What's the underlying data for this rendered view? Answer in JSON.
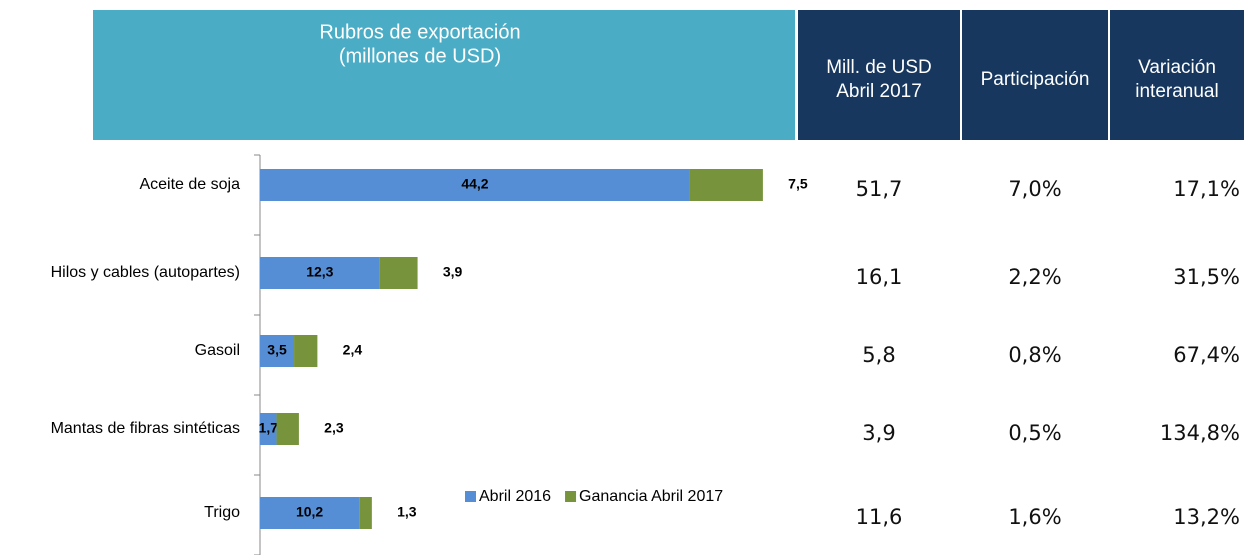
{
  "chart_data": {
    "type": "bar",
    "orientation": "horizontal",
    "stacked": true,
    "categories": [
      "Aceite de soja",
      "Hilos y cables (autopartes)",
      "Gasoil",
      "Mantas de fibras sintéticas",
      "Trigo"
    ],
    "series": [
      {
        "name": "Abril 2016",
        "color": "#558ed5",
        "values": [
          44.2,
          12.3,
          3.5,
          1.7,
          10.2
        ],
        "value_labels": [
          "44,2",
          "12,3",
          "3,5",
          "1,7",
          "10,2"
        ]
      },
      {
        "name": "Ganancia Abril 2017",
        "color": "#77933c",
        "values": [
          7.5,
          3.9,
          2.4,
          2.3,
          1.3
        ],
        "value_labels": [
          "7,5",
          "3,9",
          "2,4",
          "2,3",
          "1,3"
        ]
      }
    ],
    "xlim": [
      0,
      55
    ],
    "legend": "bottom"
  },
  "table": {
    "title": [
      "Rubros de exportación",
      "(millones de USD)"
    ],
    "columns": [
      [
        "Mill. de USD",
        "Abril 2017"
      ],
      [
        "Participación"
      ],
      [
        "Variación",
        "interanual"
      ]
    ],
    "rows": [
      [
        "51,7",
        "7,0%",
        "17,1%"
      ],
      [
        "16,1",
        "2,2%",
        "31,5%"
      ],
      [
        "5,8",
        "0,8%",
        "67,4%"
      ],
      [
        "3,9",
        "0,5%",
        "134,8%"
      ],
      [
        "11,6",
        "1,6%",
        "13,2%"
      ]
    ]
  }
}
